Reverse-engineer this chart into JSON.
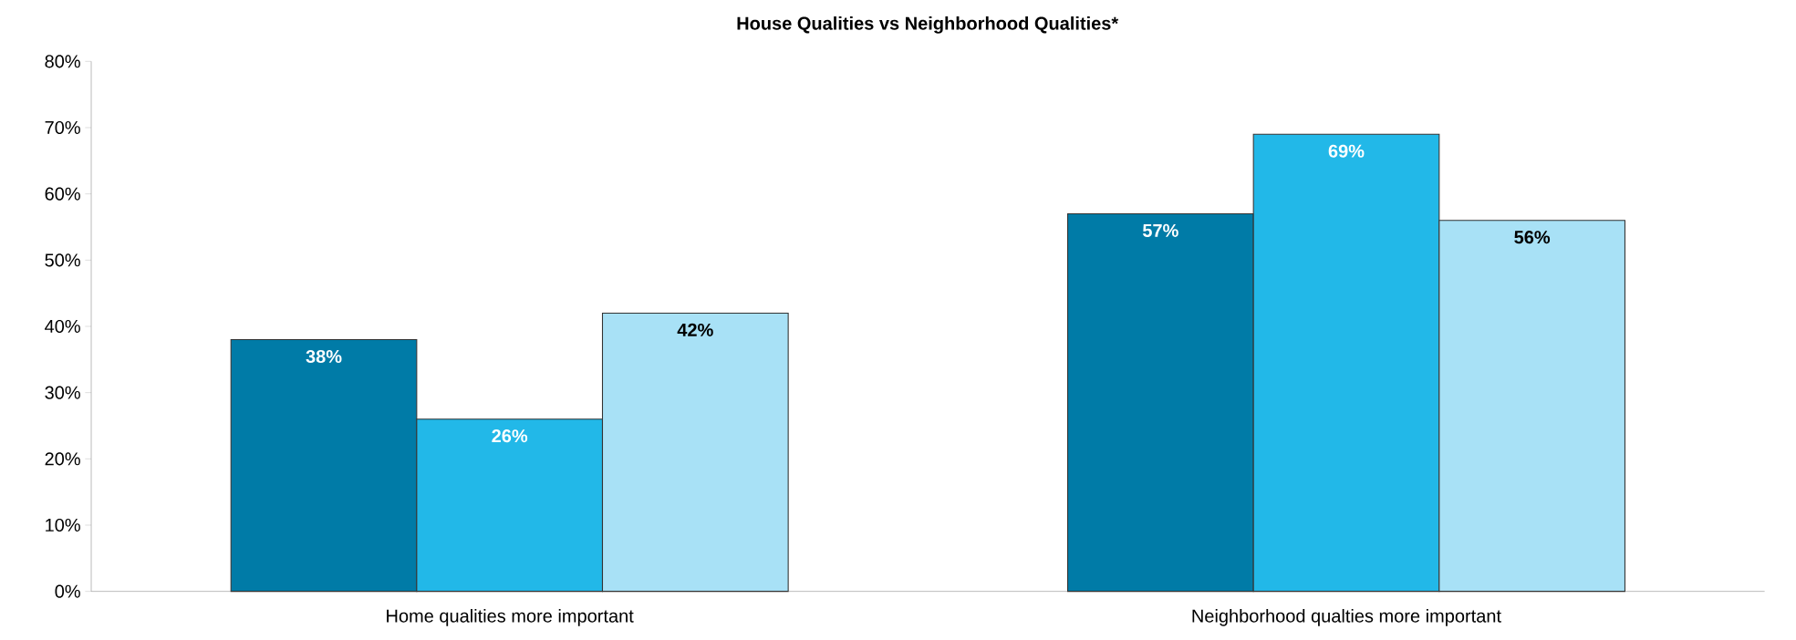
{
  "chart_data": {
    "type": "bar",
    "title": "House Qualities vs Neighborhood Qualities*",
    "categories": [
      "Home qualities more important",
      "Neighborhood qualties more important"
    ],
    "series": [
      {
        "color": "#007ba7",
        "values": [
          38,
          57
        ],
        "value_labels": [
          "38%",
          "57%"
        ]
      },
      {
        "color": "#22b8e8",
        "values": [
          26,
          69
        ],
        "value_labels": [
          "26%",
          "69%"
        ]
      },
      {
        "color": "#a8e1f6",
        "values": [
          42,
          56
        ],
        "value_labels": [
          "42%",
          "56%"
        ]
      }
    ],
    "ylim": [
      0,
      80
    ],
    "yticks": [
      {
        "value": 0,
        "label": "0%"
      },
      {
        "value": 10,
        "label": "10%"
      },
      {
        "value": 20,
        "label": "20%"
      },
      {
        "value": 30,
        "label": "30%"
      },
      {
        "value": 40,
        "label": "40%"
      },
      {
        "value": 50,
        "label": "50%"
      },
      {
        "value": 60,
        "label": "60%"
      },
      {
        "value": 70,
        "label": "70%"
      },
      {
        "value": 80,
        "label": "80%"
      }
    ]
  }
}
